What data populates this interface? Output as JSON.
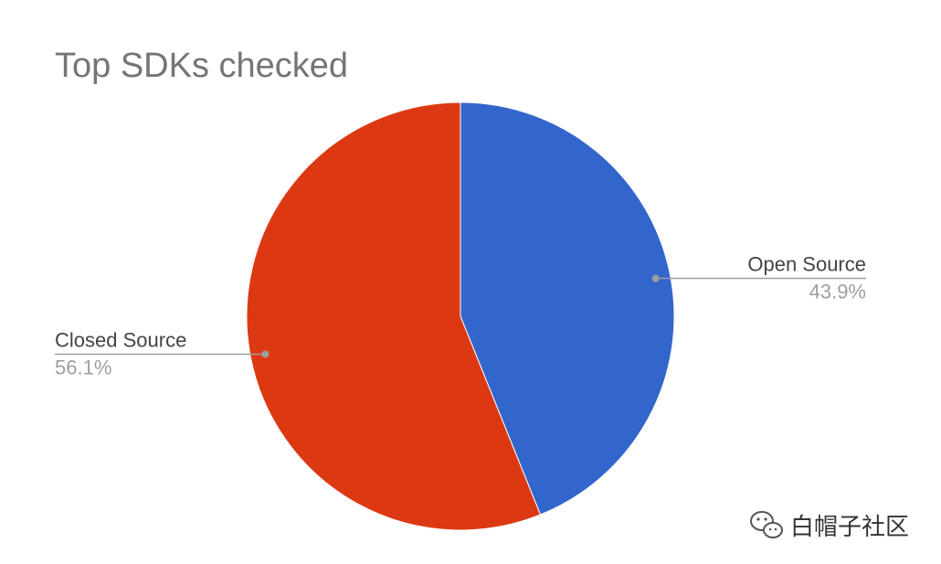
{
  "chart_data": {
    "type": "pie",
    "title": "Top SDKs checked",
    "slices": [
      {
        "label": "Open Source",
        "value": 43.9,
        "display": "43.9%",
        "color": "#3366cc"
      },
      {
        "label": "Closed Source",
        "value": 56.1,
        "display": "56.1%",
        "color": "#dc3912"
      }
    ],
    "start_angle": "12 o'clock",
    "direction": "clockwise",
    "legend": "labeled slices (no legend box)"
  },
  "watermark": {
    "text": "白帽子社区",
    "icon": "wechat-icon"
  }
}
